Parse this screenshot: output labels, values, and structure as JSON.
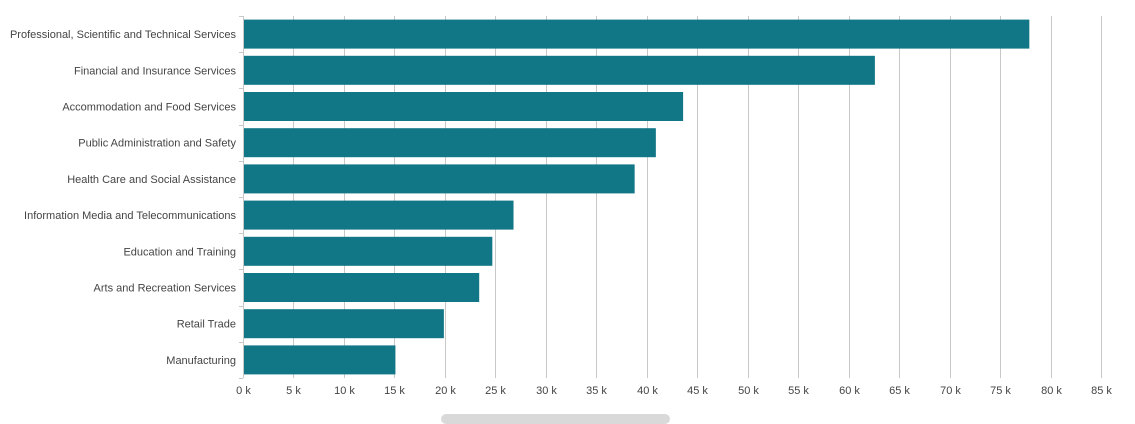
{
  "chart_data": {
    "type": "bar",
    "orientation": "horizontal",
    "categories": [
      "Professional, Scientific and Technical Services",
      "Financial and Insurance Services",
      "Accommodation and Food Services",
      "Public Administration and Safety",
      "Health Care and Social Assistance",
      "Information Media and Telecommunications",
      "Education and Training",
      "Arts and Recreation Services",
      "Retail Trade",
      "Manufacturing"
    ],
    "values": [
      77900,
      62600,
      43600,
      40900,
      38800,
      26800,
      24700,
      23400,
      19900,
      15100
    ],
    "xlim": [
      0,
      85000
    ],
    "ticks": [
      0,
      5000,
      10000,
      15000,
      20000,
      25000,
      30000,
      35000,
      40000,
      45000,
      50000,
      55000,
      60000,
      65000,
      70000,
      75000,
      80000,
      85000
    ],
    "tick_labels": [
      "0 k",
      "5 k",
      "10 k",
      "15 k",
      "20 k",
      "25 k",
      "30 k",
      "35 k",
      "40 k",
      "45 k",
      "50 k",
      "55 k",
      "60 k",
      "65 k",
      "70 k",
      "75 k",
      "80 k",
      "85 k"
    ],
    "bar_color": "#117686",
    "grid": true,
    "legend": "none"
  }
}
